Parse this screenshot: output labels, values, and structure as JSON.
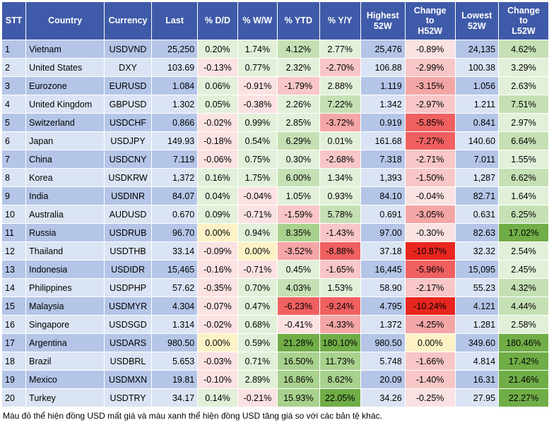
{
  "headers": [
    "STT",
    "Country",
    "Currency",
    "Last",
    "% D/D",
    "% W/W",
    "% YTD",
    "% Y/Y",
    "Highest 52W",
    "Change to H52W",
    "Lowest 52W",
    "Change to L52W"
  ],
  "rows": [
    [
      "1",
      "Vietnam",
      "USDVND",
      "25,250",
      "0.20%",
      "1.74%",
      "4.12%",
      "2.77%",
      "25,476",
      "-0.89%",
      "24,135",
      "4.62%"
    ],
    [
      "2",
      "United States",
      "DXY",
      "103.69",
      "-0.13%",
      "0.77%",
      "2.32%",
      "-2.70%",
      "106.88",
      "-2.99%",
      "100.38",
      "3.29%"
    ],
    [
      "3",
      "Eurozone",
      "EURUSD",
      "1.084",
      "0.06%",
      "-0.91%",
      "-1.79%",
      "2.88%",
      "1.119",
      "-3.15%",
      "1.056",
      "2.63%"
    ],
    [
      "4",
      "United Kingdom",
      "GBPUSD",
      "1.302",
      "0.05%",
      "-0.38%",
      "2.26%",
      "7.22%",
      "1.342",
      "-2.97%",
      "1.211",
      "7.51%"
    ],
    [
      "5",
      "Switzerland",
      "USDCHF",
      "0.866",
      "-0.02%",
      "0.99%",
      "2.85%",
      "-3.72%",
      "0.919",
      "-5.85%",
      "0.841",
      "2.97%"
    ],
    [
      "6",
      "Japan",
      "USDJPY",
      "149.93",
      "-0.18%",
      "0.54%",
      "6.29%",
      "0.01%",
      "161.68",
      "-7.27%",
      "140.60",
      "6.64%"
    ],
    [
      "7",
      "China",
      "USDCNY",
      "7.119",
      "-0.06%",
      "0.75%",
      "0.30%",
      "-2.68%",
      "7.318",
      "-2.71%",
      "7.011",
      "1.55%"
    ],
    [
      "8",
      "Korea",
      "USDKRW",
      "1,372",
      "0.16%",
      "1.75%",
      "6.00%",
      "1.34%",
      "1,393",
      "-1.50%",
      "1,287",
      "6.62%"
    ],
    [
      "9",
      "India",
      "USDINR",
      "84.07",
      "0.04%",
      "-0.04%",
      "1.05%",
      "0.93%",
      "84.10",
      "-0.04%",
      "82.71",
      "1.64%"
    ],
    [
      "10",
      "Australia",
      "AUDUSD",
      "0.670",
      "0.09%",
      "-0.71%",
      "-1.59%",
      "5.78%",
      "0.691",
      "-3.05%",
      "0.631",
      "6.25%"
    ],
    [
      "11",
      "Russia",
      "USDRUB",
      "96.70",
      "0.00%",
      "0.94%",
      "8.35%",
      "-1.43%",
      "97.00",
      "-0.30%",
      "82.63",
      "17.02%"
    ],
    [
      "12",
      "Thailand",
      "USDTHB",
      "33.14",
      "-0.09%",
      "0.00%",
      "-3.52%",
      "-8.88%",
      "37.18",
      "-10.87%",
      "32.32",
      "2.54%"
    ],
    [
      "13",
      "Indonesia",
      "USDIDR",
      "15,465",
      "-0.16%",
      "-0.71%",
      "0.45%",
      "-1.65%",
      "16,445",
      "-5.96%",
      "15,095",
      "2.45%"
    ],
    [
      "14",
      "Philippines",
      "USDPHP",
      "57.62",
      "-0.35%",
      "0.70%",
      "4.03%",
      "1.53%",
      "58.90",
      "-2.17%",
      "55.23",
      "4.32%"
    ],
    [
      "15",
      "Malaysia",
      "USDMYR",
      "4.304",
      "-0.07%",
      "0.47%",
      "-6.23%",
      "-9.24%",
      "4.795",
      "-10.24%",
      "4.121",
      "4.44%"
    ],
    [
      "16",
      "Singapore",
      "USDSGD",
      "1.314",
      "-0.02%",
      "0.68%",
      "-0.41%",
      "-4.33%",
      "1.372",
      "-4.25%",
      "1.281",
      "2.58%"
    ],
    [
      "17",
      "Argentina",
      "USDARS",
      "980.50",
      "0.00%",
      "0.59%",
      "21.28%",
      "180.10%",
      "980.50",
      "0.00%",
      "349.60",
      "180.46%"
    ],
    [
      "18",
      "Brazil",
      "USDBRL",
      "5.653",
      "-0.03%",
      "0.71%",
      "16.50%",
      "11.73%",
      "5.748",
      "-1.66%",
      "4.814",
      "17.42%"
    ],
    [
      "19",
      "Mexico",
      "USDMXN",
      "19.81",
      "-0.10%",
      "2.89%",
      "16.86%",
      "8.62%",
      "20.09",
      "-1.40%",
      "16.31",
      "21.46%"
    ],
    [
      "20",
      "Turkey",
      "USDTRY",
      "34.17",
      "0.14%",
      "-0.21%",
      "15.93%",
      "22.05%",
      "34.26",
      "-0.25%",
      "27.95",
      "22.27%"
    ]
  ],
  "footnote": "Màu đỏ thể hiện đồng USD mất giá và màu xanh thể hiện đồng USD tăng giá so với các bản tệ khác.",
  "colors": {
    "header_bg": "#3f5aa8",
    "row_odd": "#b4c5e7",
    "row_even": "#dbe4f4",
    "zero": "#fdf2c6",
    "pos_light": "#e2f0d9",
    "pos_mid": "#c5e0b4",
    "pos_strong": "#a9d18e",
    "pos_top": "#70ad47",
    "neg_light": "#fbe2e2",
    "neg_mid": "#f8c6c6",
    "neg_strong": "#f4a6a6",
    "neg_top": "#f06060",
    "neg_max": "#e8261f"
  },
  "chart_data": {
    "type": "table",
    "title": "",
    "columns": [
      "STT",
      "Country",
      "Currency",
      "Last",
      "% D/D",
      "% W/W",
      "% YTD",
      "% Y/Y",
      "Highest 52W",
      "Change to H52W",
      "Lowest 52W",
      "Change to L52W"
    ],
    "percent_columns": [
      4,
      5,
      6,
      7,
      9,
      11
    ],
    "row_count": 20
  }
}
